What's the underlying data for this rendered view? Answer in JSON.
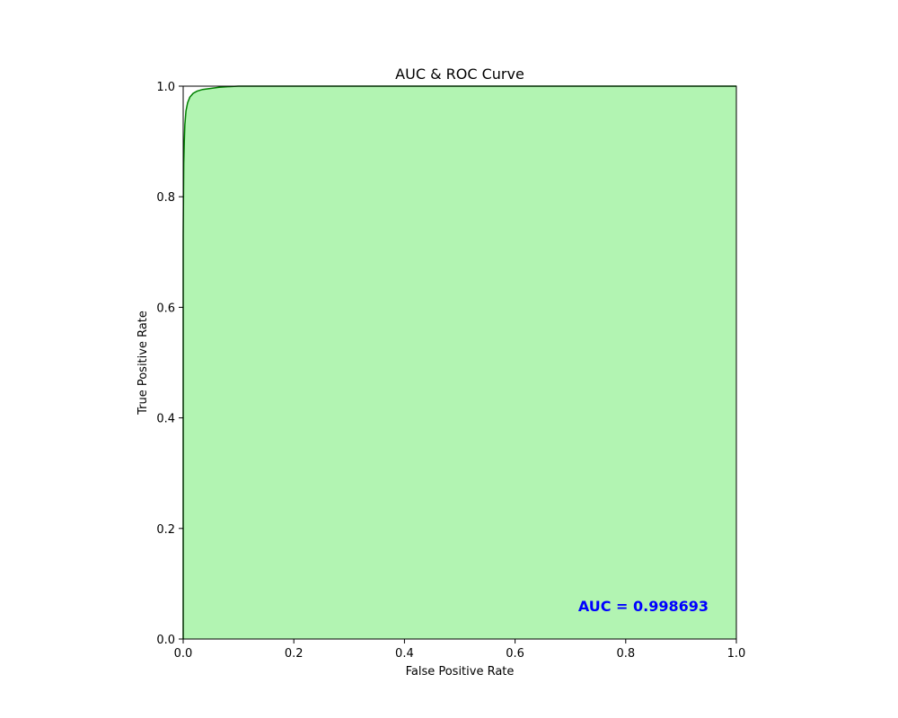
{
  "chart_data": {
    "type": "area",
    "title": "AUC & ROC Curve",
    "xlabel": "False Positive Rate",
    "ylabel": "True Positive Rate",
    "xlim": [
      0,
      1
    ],
    "ylim": [
      0,
      1
    ],
    "xticks": [
      "0.0",
      "0.2",
      "0.4",
      "0.6",
      "0.8",
      "1.0"
    ],
    "yticks": [
      "0.0",
      "0.2",
      "0.4",
      "0.6",
      "0.8",
      "1.0"
    ],
    "grid": false,
    "legend": "none",
    "annotation": {
      "text": "AUC = 0.998693",
      "placement": "bottom-right",
      "color": "#0000ff"
    },
    "series": [
      {
        "x": [
          0.0,
          0.0,
          0.001,
          0.002,
          0.003,
          0.005,
          0.008,
          0.012,
          0.018,
          0.025,
          0.035,
          0.05,
          0.065,
          0.08,
          0.1,
          0.15,
          0.28,
          1.0
        ],
        "y": [
          0.0,
          0.73,
          0.86,
          0.9,
          0.93,
          0.955,
          0.97,
          0.98,
          0.987,
          0.991,
          0.994,
          0.996,
          0.998,
          0.999,
          1.0,
          1.0,
          1.0,
          1.0
        ],
        "line_color": "#008000",
        "fill_color": "#b2f4b2"
      }
    ]
  }
}
